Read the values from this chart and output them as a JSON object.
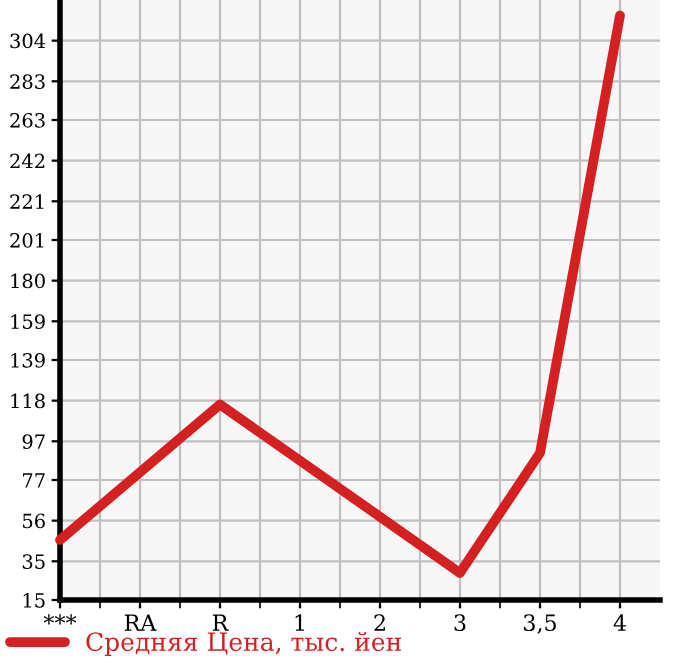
{
  "chart_data": {
    "type": "line",
    "categories": [
      "***",
      "RA",
      "R",
      "1",
      "2",
      "3",
      "3,5",
      "4"
    ],
    "series": [
      {
        "name": "Средняя Цена, тыс. йен",
        "color": "#d42020",
        "values": [
          46,
          null,
          116,
          null,
          null,
          29,
          91,
          317
        ]
      }
    ],
    "ylim": [
      15,
      325
    ],
    "yticks": [
      15,
      35,
      56,
      77,
      97,
      118,
      139,
      159,
      180,
      201,
      221,
      242,
      263,
      283,
      304
    ],
    "grid": true,
    "legend": "bottom",
    "marker": "none",
    "line_style": "solid"
  }
}
